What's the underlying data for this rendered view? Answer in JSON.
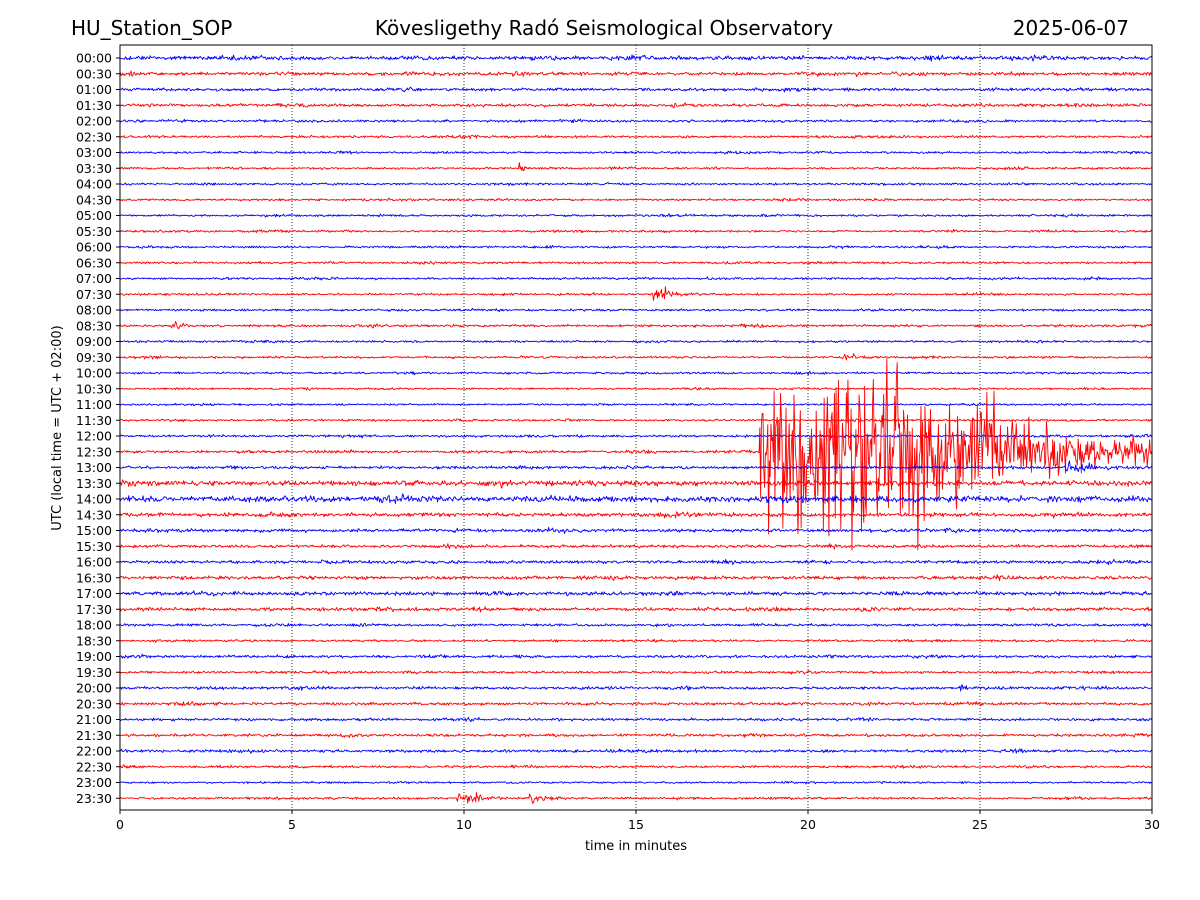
{
  "header": {
    "station": "HU_Station_SOP",
    "observatory": "Kövesligethy Radó Seismological Observatory",
    "date": "2025-06-07"
  },
  "chart_data": {
    "type": "line",
    "subtype": "helicorder",
    "xlabel": "time in minutes",
    "ylabel": "UTC (local time = UTC + 02:00)",
    "xlim": [
      0,
      30
    ],
    "x_ticks": [
      "0",
      "5",
      "10",
      "15",
      "20",
      "25",
      "30"
    ],
    "grid_x": "dotted vertical at each 5 minutes",
    "colors": {
      "even_rows": "#0000ff",
      "odd_rows": "#ff0000"
    },
    "rows": [
      "00:00",
      "00:30",
      "01:00",
      "01:30",
      "02:00",
      "02:30",
      "03:00",
      "03:30",
      "04:00",
      "04:30",
      "05:00",
      "05:30",
      "06:00",
      "06:30",
      "07:00",
      "07:30",
      "08:00",
      "08:30",
      "09:00",
      "09:30",
      "10:00",
      "10:30",
      "11:00",
      "11:30",
      "12:00",
      "12:30",
      "13:00",
      "13:30",
      "14:00",
      "14:30",
      "15:00",
      "15:30",
      "16:00",
      "16:30",
      "17:00",
      "17:30",
      "18:00",
      "18:30",
      "19:00",
      "19:30",
      "20:00",
      "20:30",
      "21:00",
      "21:30",
      "22:00",
      "22:30",
      "23:00",
      "23:30"
    ],
    "noise_level": [
      1.3,
      1.1,
      1.0,
      1.0,
      0.8,
      0.8,
      0.7,
      0.7,
      0.7,
      0.7,
      0.7,
      0.7,
      0.7,
      0.7,
      0.7,
      0.7,
      0.7,
      0.8,
      0.7,
      0.7,
      0.7,
      0.6,
      0.6,
      0.7,
      0.8,
      0.9,
      0.9,
      1.7,
      1.9,
      1.3,
      1.1,
      1.0,
      1.0,
      1.1,
      1.2,
      1.1,
      0.8,
      0.7,
      0.9,
      0.8,
      0.9,
      0.9,
      0.9,
      0.9,
      0.9,
      0.8,
      0.6,
      0.7
    ],
    "events": [
      {
        "row": "00:30",
        "start_min": 21.4,
        "duration_min": 0.3,
        "amplitude": 3
      },
      {
        "row": "03:30",
        "start_min": 11.6,
        "duration_min": 0.3,
        "amplitude": 7
      },
      {
        "row": "07:30",
        "start_min": 15.5,
        "duration_min": 1.5,
        "amplitude": 6
      },
      {
        "row": "08:30",
        "start_min": 1.5,
        "duration_min": 1.3,
        "amplitude": 2.5
      },
      {
        "row": "09:30",
        "start_min": 21.0,
        "duration_min": 1.7,
        "amplitude": 2.5
      },
      {
        "row": "12:30",
        "start_min": 18.6,
        "duration_min": 11.4,
        "amplitude": 55
      },
      {
        "row": "13:00",
        "start_min": 27.5,
        "duration_min": 2.5,
        "amplitude": 5
      },
      {
        "row": "20:00",
        "start_min": 24.4,
        "duration_min": 0.8,
        "amplitude": 4
      },
      {
        "row": "23:30",
        "start_min": 9.8,
        "duration_min": 1.6,
        "amplitude": 7
      },
      {
        "row": "23:30",
        "start_min": 11.9,
        "duration_min": 1.5,
        "amplitude": 5
      }
    ]
  }
}
